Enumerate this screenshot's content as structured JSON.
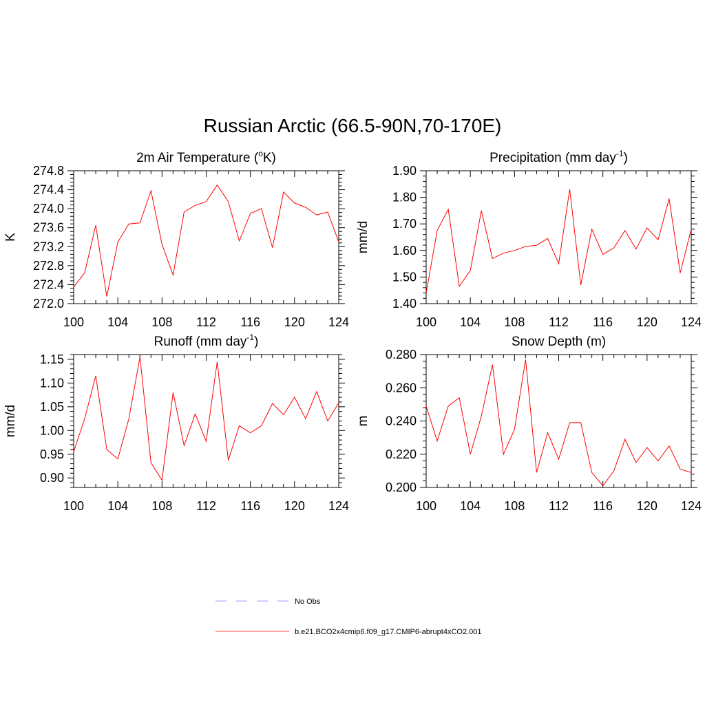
{
  "figure": {
    "title": "Russian Arctic (66.5-90N,70-170E)",
    "legend": [
      {
        "label": "No Obs",
        "color": "#9999ff",
        "style": "dashed"
      },
      {
        "label": "b.e21.BCO2x4cmip6.f09_g17.CMIP6-abrupt4xCO2.001",
        "color": "#ff4444",
        "style": "solid"
      }
    ]
  },
  "chart_data": [
    {
      "type": "line",
      "title": "2m Air Temperature",
      "title_unit": "K",
      "title_unit_sup": "o",
      "ylabel": "K",
      "xlim": [
        100,
        124
      ],
      "ylim": [
        272.0,
        274.8
      ],
      "xticks": [
        "100",
        "104",
        "108",
        "112",
        "116",
        "120",
        "124"
      ],
      "yticks": [
        "272.0",
        "272.4",
        "272.8",
        "273.2",
        "273.6",
        "274.0",
        "274.4",
        "274.8"
      ],
      "color": "#ff0000",
      "x": [
        100,
        101,
        102,
        103,
        104,
        105,
        106,
        107,
        108,
        109,
        110,
        111,
        112,
        113,
        114,
        115,
        116,
        117,
        118,
        119,
        120,
        121,
        122,
        123,
        124
      ],
      "y": [
        272.35,
        272.65,
        273.65,
        272.15,
        273.3,
        273.68,
        273.7,
        274.38,
        273.25,
        272.6,
        273.93,
        274.07,
        274.15,
        274.5,
        274.15,
        273.32,
        273.9,
        274.0,
        273.18,
        274.35,
        274.12,
        274.03,
        273.87,
        273.93,
        273.3
      ]
    },
    {
      "type": "line",
      "title": "Precipitation (mm day",
      "title_sup": "-1",
      "title_end": ")",
      "ylabel": "mm/d",
      "xlim": [
        100,
        124
      ],
      "ylim": [
        1.4,
        1.9
      ],
      "xticks": [
        "100",
        "104",
        "108",
        "112",
        "116",
        "120",
        "124"
      ],
      "yticks": [
        "1.40",
        "1.50",
        "1.60",
        "1.70",
        "1.80",
        "1.90"
      ],
      "color": "#ff0000",
      "x": [
        100,
        101,
        102,
        103,
        104,
        105,
        106,
        107,
        108,
        109,
        110,
        111,
        112,
        113,
        114,
        115,
        116,
        117,
        118,
        119,
        120,
        121,
        122,
        123,
        124
      ],
      "y": [
        1.44,
        1.675,
        1.755,
        1.465,
        1.525,
        1.75,
        1.57,
        1.59,
        1.6,
        1.615,
        1.62,
        1.645,
        1.55,
        1.83,
        1.47,
        1.68,
        1.585,
        1.61,
        1.675,
        1.605,
        1.685,
        1.64,
        1.795,
        1.515,
        1.68
      ]
    },
    {
      "type": "line",
      "title": "Runoff (mm day",
      "title_sup": "-1",
      "title_end": ")",
      "ylabel": "mm/d",
      "xlim": [
        100,
        124
      ],
      "ylim": [
        0.88,
        1.16
      ],
      "xticks": [
        "100",
        "104",
        "108",
        "112",
        "116",
        "120",
        "124"
      ],
      "yticks": [
        "0.90",
        "0.95",
        "1.00",
        "1.05",
        "1.10",
        "1.15"
      ],
      "color": "#ff0000",
      "x": [
        100,
        101,
        102,
        103,
        104,
        105,
        106,
        107,
        108,
        109,
        110,
        111,
        112,
        113,
        114,
        115,
        116,
        117,
        118,
        119,
        120,
        121,
        122,
        123,
        124
      ],
      "y": [
        0.955,
        1.025,
        1.115,
        0.96,
        0.94,
        1.025,
        1.155,
        0.932,
        0.895,
        1.08,
        0.968,
        1.035,
        0.977,
        1.145,
        0.937,
        1.01,
        0.995,
        1.01,
        1.057,
        1.033,
        1.07,
        1.025,
        1.082,
        1.02,
        1.058
      ]
    },
    {
      "type": "line",
      "title": "Snow Depth (m)",
      "ylabel": "m",
      "xlim": [
        100,
        124
      ],
      "ylim": [
        0.2,
        0.28
      ],
      "xticks": [
        "100",
        "104",
        "108",
        "112",
        "116",
        "120",
        "124"
      ],
      "yticks": [
        "0.200",
        "0.220",
        "0.240",
        "0.260",
        "0.280"
      ],
      "color": "#ff0000",
      "x": [
        100,
        101,
        102,
        103,
        104,
        105,
        106,
        107,
        108,
        109,
        110,
        111,
        112,
        113,
        114,
        115,
        116,
        117,
        118,
        119,
        120,
        121,
        122,
        123,
        124
      ],
      "y": [
        0.249,
        0.228,
        0.249,
        0.254,
        0.22,
        0.243,
        0.274,
        0.22,
        0.235,
        0.277,
        0.209,
        0.233,
        0.217,
        0.239,
        0.239,
        0.209,
        0.201,
        0.21,
        0.229,
        0.215,
        0.224,
        0.216,
        0.225,
        0.211,
        0.209
      ]
    }
  ]
}
